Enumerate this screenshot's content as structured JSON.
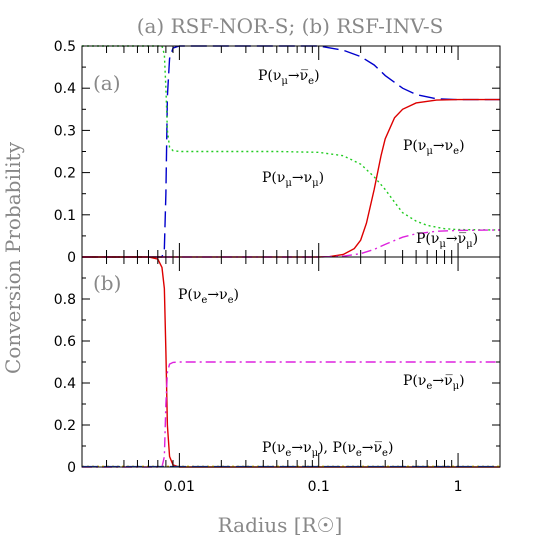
{
  "chart_data": [
    {
      "type": "line",
      "panel_label": "(a)",
      "title": "(a) RSF-NOR-S; (b) RSF-INV-S",
      "xlabel": "Radius [R☉]",
      "ylabel": "Conversion Probability",
      "xscale": "log",
      "xlim": [
        0.002,
        2.0
      ],
      "ylim": [
        0,
        0.5
      ],
      "yticks": [
        "0",
        "0.1",
        "0.2",
        "0.3",
        "0.4",
        "0.5"
      ],
      "grid": false,
      "series": [
        {
          "label_parts": [
            "P(",
            "ν",
            "μ",
            "→",
            "ν̅",
            "e",
            ")"
          ],
          "color": "#0000cc",
          "dash": "long-dash",
          "x": [
            0.002,
            0.0075,
            0.0078,
            0.008,
            0.0082,
            0.0085,
            0.009,
            0.01,
            0.05,
            0.1,
            0.15,
            0.2,
            0.25,
            0.3,
            0.4,
            0.5,
            0.7,
            1.0,
            2.0
          ],
          "y": [
            0.0,
            0.0,
            0.02,
            0.15,
            0.38,
            0.47,
            0.495,
            0.5,
            0.5,
            0.5,
            0.49,
            0.475,
            0.455,
            0.43,
            0.4,
            0.385,
            0.375,
            0.373,
            0.373
          ]
        },
        {
          "label_parts": [
            "P(",
            "ν",
            "μ",
            "→",
            "ν",
            "e",
            ")"
          ],
          "color": "#dd0000",
          "dash": "solid",
          "x": [
            0.002,
            0.1,
            0.12,
            0.15,
            0.18,
            0.2,
            0.22,
            0.25,
            0.28,
            0.3,
            0.35,
            0.4,
            0.5,
            0.7,
            1.0,
            2.0
          ],
          "y": [
            0.0,
            0.0,
            0.001,
            0.006,
            0.02,
            0.04,
            0.08,
            0.16,
            0.24,
            0.28,
            0.33,
            0.35,
            0.365,
            0.372,
            0.373,
            0.373
          ]
        },
        {
          "label_parts": [
            "P(",
            "ν",
            "μ",
            "→",
            "ν",
            "μ",
            ")"
          ],
          "color": "#22cc22",
          "dash": "dotted",
          "x": [
            0.002,
            0.0075,
            0.0078,
            0.008,
            0.0082,
            0.0085,
            0.009,
            0.01,
            0.05,
            0.1,
            0.15,
            0.2,
            0.25,
            0.3,
            0.35,
            0.4,
            0.5,
            0.6,
            0.8,
            1.0,
            2.0
          ],
          "y": [
            0.5,
            0.5,
            0.48,
            0.4,
            0.3,
            0.26,
            0.252,
            0.25,
            0.25,
            0.248,
            0.24,
            0.22,
            0.19,
            0.16,
            0.13,
            0.105,
            0.085,
            0.075,
            0.067,
            0.065,
            0.064
          ]
        },
        {
          "label_parts": [
            "P(",
            "ν",
            "μ",
            "→",
            "ν̅",
            "μ",
            ")"
          ],
          "color": "#dd22dd",
          "dash": "dash-dot",
          "x": [
            0.002,
            0.1,
            0.15,
            0.2,
            0.25,
            0.3,
            0.4,
            0.5,
            0.7,
            1.0,
            2.0
          ],
          "y": [
            0.0,
            0.0,
            0.002,
            0.008,
            0.018,
            0.03,
            0.047,
            0.055,
            0.061,
            0.063,
            0.064
          ]
        }
      ]
    },
    {
      "type": "line",
      "panel_label": "(b)",
      "xscale": "log",
      "xlim": [
        0.002,
        2.0
      ],
      "ylim": [
        0,
        1.0
      ],
      "yticks": [
        "0",
        "0.2",
        "0.4",
        "0.6",
        "0.8"
      ],
      "xticks": [
        "0.01",
        "0.1",
        "1"
      ],
      "grid": false,
      "series": [
        {
          "label_parts": [
            "P(",
            "ν",
            "e",
            "→",
            "ν",
            "e",
            ")"
          ],
          "color": "#dd0000",
          "dash": "solid",
          "x": [
            0.002,
            0.006,
            0.007,
            0.0075,
            0.0078,
            0.008,
            0.0082,
            0.0085,
            0.009,
            0.01,
            2.0
          ],
          "y": [
            1.0,
            1.0,
            0.99,
            0.95,
            0.85,
            0.55,
            0.2,
            0.05,
            0.01,
            0.0,
            0.0
          ]
        },
        {
          "label_parts": [
            "P(",
            "ν",
            "e",
            "→",
            "ν̅",
            "μ",
            ")"
          ],
          "color": "#dd22dd",
          "dash": "dash-dot",
          "x": [
            0.002,
            0.0075,
            0.0078,
            0.008,
            0.0082,
            0.0085,
            0.009,
            0.01,
            2.0
          ],
          "y": [
            0.0,
            0.0,
            0.05,
            0.3,
            0.45,
            0.49,
            0.498,
            0.5,
            0.5
          ]
        },
        {
          "label_parts": [
            "P(",
            "ν",
            "e",
            "→",
            "ν",
            "μ",
            "), P(",
            "ν",
            "e",
            "→",
            "ν̅",
            "e",
            ")"
          ],
          "color": "#ccaa00",
          "dash": "dotted",
          "x": [
            0.002,
            2.0
          ],
          "y": [
            0.003,
            0.003
          ]
        },
        {
          "color": "#2244cc",
          "dash": "long-dash",
          "x": [
            0.002,
            2.0
          ],
          "y": [
            0.002,
            0.002
          ]
        }
      ]
    }
  ]
}
